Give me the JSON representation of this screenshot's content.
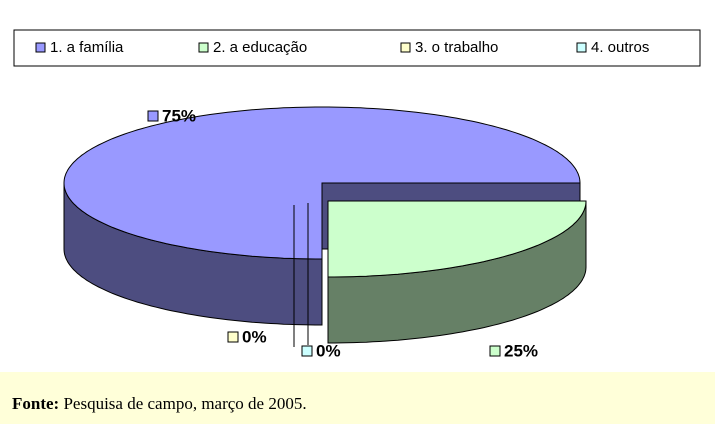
{
  "chart_data": {
    "type": "pie3d",
    "categories": [
      "1. a família",
      "2. a educação",
      "3. o trabalho",
      "4. outros"
    ],
    "values": [
      75,
      25,
      0,
      0
    ],
    "value_labels": [
      "75%",
      "25%",
      "0%",
      "0%"
    ],
    "colors": [
      "#9999ff",
      "#ccffcc",
      "#ffffcc",
      "#ccffff"
    ],
    "source": {
      "label": "Fonte:",
      "text": "Pesquisa de campo, março de 2005."
    }
  }
}
